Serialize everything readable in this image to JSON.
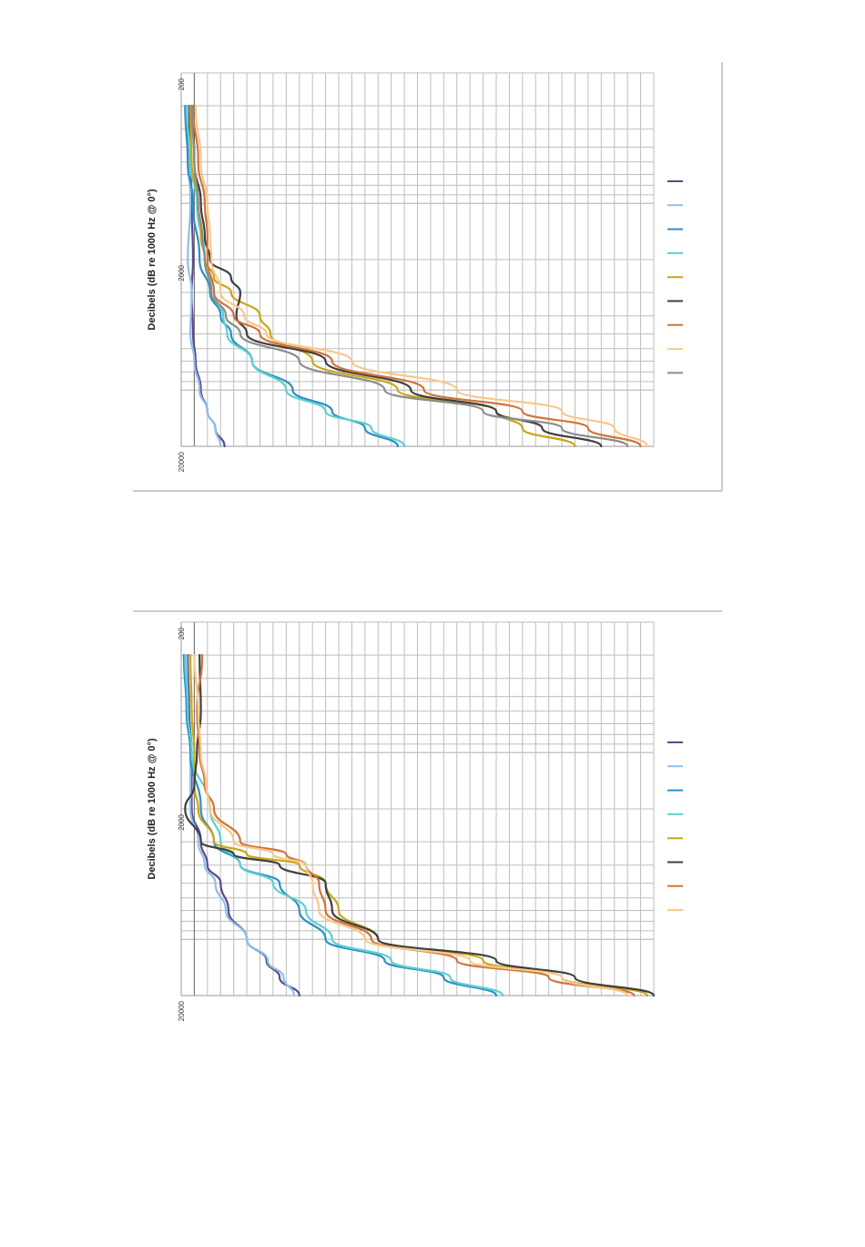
{
  "chart_data": [
    {
      "type": "line",
      "title": "",
      "ylabel": "Decibels (dB re 1000 Hz @ 0°)",
      "xlabel": "",
      "x_scale": "log",
      "xlim": [
        200,
        20000
      ],
      "x_ticks": [
        "200",
        "2000",
        "20000"
      ],
      "ylim": [
        -35,
        1
      ],
      "grid": true,
      "legend_placement": "right",
      "orientation": "rotated-90",
      "series": [
        {
          "color": "#5b4a8b",
          "x": [
            300,
            600,
            1000,
            2000,
            3000,
            5000,
            7000,
            10000,
            13000,
            16000,
            20000
          ],
          "y": [
            0.4,
            0.3,
            0.2,
            0.1,
            0.2,
            0.1,
            -0.1,
            -0.5,
            -1.0,
            -1.6,
            -2.3
          ]
        },
        {
          "color": "#8fbfe8",
          "x": [
            300,
            600,
            1000,
            2000,
            3000,
            5000,
            7000,
            10000,
            13000,
            16000,
            20000
          ],
          "y": [
            0.6,
            0.4,
            0.3,
            0.5,
            0.2,
            0.3,
            0.0,
            -0.4,
            -1.0,
            -1.6,
            -2.0
          ]
        },
        {
          "color": "#2a8fc6",
          "x": [
            300,
            600,
            1000,
            2000,
            3000,
            4000,
            5000,
            7000,
            10000,
            13000,
            16000,
            20000
          ],
          "y": [
            0.7,
            0.5,
            0.1,
            -0.4,
            -1.2,
            -2.0,
            -2.8,
            -4.4,
            -7.5,
            -10.5,
            -13.0,
            -15.5
          ]
        },
        {
          "color": "#5dd0cf",
          "x": [
            300,
            600,
            1000,
            2000,
            3000,
            4000,
            5000,
            7000,
            10000,
            13000,
            16000,
            20000
          ],
          "y": [
            0.6,
            0.3,
            -0.2,
            -0.8,
            -1.5,
            -2.2,
            -2.5,
            -4.4,
            -7.0,
            -10.0,
            -13.5,
            -16.0
          ]
        },
        {
          "color": "#c9a616",
          "x": [
            300,
            600,
            1000,
            1500,
            2000,
            2500,
            3000,
            4000,
            5000,
            7000,
            10000,
            13000,
            16000,
            20000
          ],
          "y": [
            0.3,
            0.2,
            -0.3,
            -0.5,
            -0.8,
            -1.5,
            -2.8,
            -5.0,
            -5.8,
            -9.0,
            -15.5,
            -23.0,
            -25.0,
            -29.0
          ]
        },
        {
          "color": "#3f3f3f",
          "x": [
            300,
            600,
            1000,
            1500,
            2000,
            2500,
            3000,
            4000,
            5000,
            7000,
            10000,
            13000,
            16000,
            20000
          ],
          "y": [
            0.1,
            0.0,
            -0.5,
            -0.8,
            -1.2,
            -2.8,
            -3.5,
            -3.2,
            -4.0,
            -10.0,
            -16.5,
            -23.0,
            -26.5,
            -31.0
          ]
        },
        {
          "color": "#d0733a",
          "x": [
            300,
            600,
            1000,
            1500,
            2000,
            3000,
            4000,
            5000,
            7000,
            10000,
            13000,
            16000,
            20000
          ],
          "y": [
            0.1,
            -0.3,
            -0.8,
            -1.0,
            -1.0,
            -1.5,
            -3.0,
            -5.0,
            -10.5,
            -17.5,
            -25.0,
            -30.0,
            -34.0
          ]
        },
        {
          "color": "#f7c88a",
          "x": [
            300,
            600,
            1000,
            1500,
            2000,
            3000,
            4000,
            5000,
            7000,
            10000,
            13000,
            16000,
            20000
          ],
          "y": [
            -0.1,
            -0.5,
            -1.0,
            -1.2,
            -1.3,
            -2.0,
            -3.8,
            -5.5,
            -12.0,
            -20.0,
            -28.0,
            -32.0,
            -34.5
          ]
        },
        {
          "color": "#8c8c8c",
          "x": [
            300,
            600,
            1000,
            1500,
            2000,
            3000,
            4000,
            5000,
            7000,
            10000,
            13000,
            16000,
            20000
          ],
          "y": [
            0.2,
            0.0,
            -0.3,
            -0.6,
            -0.8,
            -1.3,
            -2.4,
            -3.5,
            -8.0,
            -14.5,
            -22.0,
            -28.0,
            -33.0
          ]
        }
      ]
    },
    {
      "type": "line",
      "title": "",
      "ylabel": "Decibels (dB re 1000 Hz @ 0°)",
      "xlabel": "",
      "x_scale": "log",
      "xlim": [
        200,
        20000
      ],
      "x_ticks": [
        "200",
        "2000",
        "20000"
      ],
      "ylim": [
        -35,
        1
      ],
      "grid": true,
      "legend_placement": "right",
      "orientation": "rotated-90",
      "series": [
        {
          "color": "#5b4a8b",
          "x": [
            300,
            600,
            1000,
            2000,
            3000,
            4000,
            5000,
            7000,
            10000,
            13000,
            16000,
            20000
          ],
          "y": [
            0.5,
            0.4,
            0.2,
            0.2,
            -0.5,
            -1.0,
            -2.0,
            -2.6,
            -4.0,
            -5.5,
            -6.5,
            -8.0
          ]
        },
        {
          "color": "#8fbfe8",
          "x": [
            300,
            600,
            1000,
            2000,
            3000,
            4000,
            5000,
            7000,
            10000,
            13000,
            16000,
            20000
          ],
          "y": [
            0.6,
            0.5,
            0.3,
            0.3,
            -0.3,
            -0.8,
            -1.6,
            -2.4,
            -4.0,
            -5.6,
            -6.8,
            -7.6
          ]
        },
        {
          "color": "#2a8fc6",
          "x": [
            300,
            600,
            1000,
            2000,
            3000,
            4000,
            5000,
            7000,
            10000,
            13000,
            16000,
            20000
          ],
          "y": [
            0.8,
            0.6,
            0.3,
            -0.5,
            -1.5,
            -3.5,
            -6.5,
            -8.0,
            -10.0,
            -14.5,
            -19.0,
            -23.0
          ]
        },
        {
          "color": "#5dd0cf",
          "x": [
            300,
            600,
            1000,
            2000,
            3000,
            4000,
            5000,
            7000,
            10000,
            13000,
            16000,
            20000
          ],
          "y": [
            0.7,
            0.5,
            0.2,
            -1.2,
            -2.0,
            -3.5,
            -6.0,
            -8.5,
            -10.5,
            -15.0,
            -19.5,
            -23.5
          ]
        },
        {
          "color": "#c9a616",
          "x": [
            300,
            600,
            1000,
            1500,
            2000,
            3000,
            3500,
            4000,
            5000,
            7000,
            10000,
            13000,
            16000,
            20000
          ],
          "y": [
            0.3,
            0.2,
            0.0,
            0.0,
            -0.3,
            -1.5,
            -4.0,
            -8.0,
            -10.0,
            -11.0,
            -14.0,
            -22.0,
            -28.0,
            -34.5
          ]
        },
        {
          "color": "#3f3f3f",
          "x": [
            300,
            600,
            1000,
            1500,
            2000,
            3000,
            3500,
            4000,
            5000,
            7000,
            10000,
            13000,
            16000,
            20000
          ],
          "y": [
            -0.4,
            -0.5,
            -0.2,
            0.0,
            0.7,
            -0.5,
            -3.0,
            -6.5,
            -10.0,
            -10.5,
            -14.0,
            -23.0,
            -29.0,
            -35.0
          ]
        },
        {
          "color": "#d0733a",
          "x": [
            300,
            600,
            1000,
            1500,
            2000,
            3000,
            3500,
            4000,
            5000,
            7000,
            10000,
            13000,
            16000,
            20000
          ],
          "y": [
            -0.6,
            -0.2,
            -0.4,
            -0.8,
            -1.5,
            -3.5,
            -7.0,
            -8.5,
            -9.5,
            -10.0,
            -13.5,
            -20.0,
            -27.0,
            -33.5
          ]
        },
        {
          "color": "#f7c88a",
          "x": [
            300,
            600,
            1000,
            1500,
            2000,
            3000,
            3500,
            4000,
            5000,
            7000,
            10000,
            13000,
            16000,
            20000
          ],
          "y": [
            0.0,
            -0.3,
            -0.5,
            -0.9,
            -1.2,
            -3.0,
            -6.0,
            -8.5,
            -9.0,
            -9.5,
            -13.0,
            -21.0,
            -28.0,
            -33.0
          ]
        }
      ]
    }
  ]
}
